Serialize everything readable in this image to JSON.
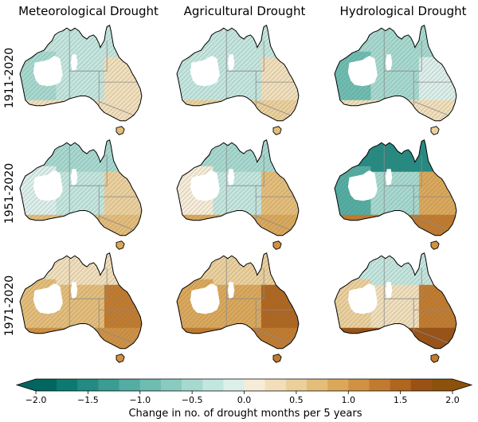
{
  "chart_data": {
    "type": "heatmap",
    "description_kind": "choropleth map grid",
    "columns": [
      "Meteorological Drought",
      "Agricultural Drought",
      "Hydrological Drought"
    ],
    "rows": [
      "1911-2020",
      "1951-2020",
      "1971-2020"
    ],
    "colorbar": {
      "label": "Change in no. of drought months per 5 years",
      "range": [
        -2.0,
        2.0
      ],
      "ticks": [
        "−2.0",
        "−1.5",
        "−1.0",
        "−0.5",
        "0.0",
        "0.5",
        "1.0",
        "1.5",
        "2.0"
      ],
      "extend": "both",
      "colors": [
        "#01665e",
        "#0d7a71",
        "#238b82",
        "#3a9c92",
        "#53ada2",
        "#6dbdb1",
        "#89cbc0",
        "#a6d9cf",
        "#c3e6de",
        "#dcefea",
        "#f6ecd8",
        "#f1dfbb",
        "#ebd09c",
        "#e4bd79",
        "#dba85a",
        "#d09142",
        "#c27b2e",
        "#b0661f",
        "#9a5214",
        "#8c510a"
      ]
    },
    "panels": [
      {
        "row": "1911-2020",
        "column": "Meteorological Drought",
        "west": -0.45,
        "central": -0.3,
        "east": 0.2,
        "south": 0.35,
        "north": -0.35,
        "tas": 0.6
      },
      {
        "row": "1911-2020",
        "column": "Agricultural Drought",
        "west": -0.4,
        "central": -0.3,
        "east": 0.25,
        "south": 0.4,
        "north": -0.3,
        "tas": 0.6
      },
      {
        "row": "1911-2020",
        "column": "Hydrological Drought",
        "west": -0.9,
        "central": -0.5,
        "east": -0.1,
        "south": 0.2,
        "north": -0.6,
        "tas": 0.5
      },
      {
        "row": "1951-2020",
        "column": "Meteorological Drought",
        "west": -0.2,
        "central": -0.3,
        "east": 0.45,
        "south": 0.75,
        "north": -0.5,
        "tas": 0.9
      },
      {
        "row": "1951-2020",
        "column": "Agricultural Drought",
        "west": 0.1,
        "central": -0.3,
        "east": 0.65,
        "south": 0.9,
        "north": -0.45,
        "tas": 1.0
      },
      {
        "row": "1951-2020",
        "column": "Hydrological Drought",
        "west": -1.1,
        "central": -0.6,
        "east": 0.9,
        "south": 1.3,
        "north": -1.5,
        "tas": 1.1
      },
      {
        "row": "1971-2020",
        "column": "Meteorological Drought",
        "west": 0.6,
        "central": 0.7,
        "east": 1.2,
        "south": 1.1,
        "north": 0.3,
        "tas": 1.0
      },
      {
        "row": "1971-2020",
        "column": "Agricultural Drought",
        "west": 0.9,
        "central": 0.8,
        "east": 1.4,
        "south": 1.3,
        "north": 0.5,
        "tas": 1.2
      },
      {
        "row": "1971-2020",
        "column": "Hydrological Drought",
        "west": 0.4,
        "central": 0.2,
        "east": 1.3,
        "south": 1.6,
        "north": -0.4,
        "tas": 1.2
      }
    ]
  }
}
